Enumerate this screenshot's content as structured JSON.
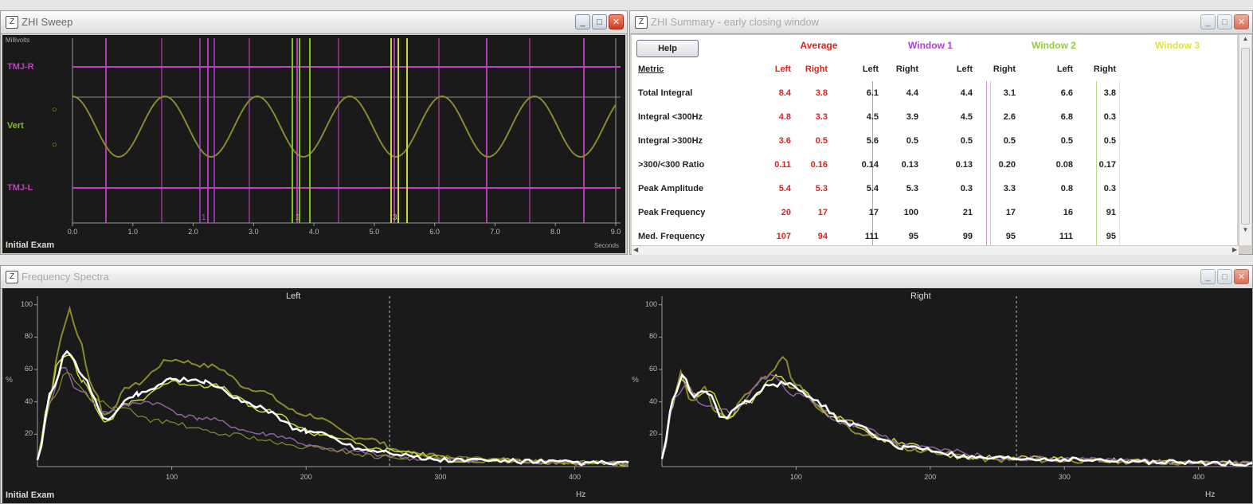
{
  "colors": {
    "magenta": "#c23fc2",
    "olive": "#8a8a2a",
    "green": "#80c020",
    "yellowgreen": "#c8d83a",
    "white": "#ffffff",
    "purple": "#9060a0",
    "red": "#e02020",
    "window1": "#b040d0",
    "window2": "#90d030",
    "window3": "#e0e040"
  },
  "sweep": {
    "title": "ZHI Sweep",
    "top_left_label": "Millivolts",
    "row_labels": [
      "TMJ-R",
      "Vert",
      "TMJ-L"
    ],
    "vert_circles": [
      "○",
      "○"
    ],
    "x_ticks": [
      "0.0",
      "1.0",
      "2.0",
      "3.0",
      "4.0",
      "5.0",
      "6.0",
      "7.0",
      "8.0",
      "9.0"
    ],
    "bottom_left": "Initial Exam",
    "bottom_right": "Seconds",
    "window_markers": [
      "1",
      "2",
      "3"
    ]
  },
  "summary": {
    "title": "ZHI Summary - early closing window",
    "help_label": "Help",
    "metric_header": "Metric",
    "groups": [
      "Average",
      "Window 1",
      "Window 2",
      "Window 3"
    ],
    "sub": [
      "Left",
      "Right"
    ],
    "rows": [
      {
        "label": "Total Integral",
        "values": [
          "8.4",
          "3.8",
          "6.1",
          "4.4",
          "4.4",
          "3.1",
          "6.6",
          "3.8"
        ]
      },
      {
        "label": "Integral <300Hz",
        "values": [
          "4.8",
          "3.3",
          "4.5",
          "3.9",
          "4.5",
          "2.6",
          "6.8",
          "0.3"
        ]
      },
      {
        "label": "Integral >300Hz",
        "values": [
          "3.6",
          "0.5",
          "5.6",
          "0.5",
          "0.5",
          "0.5",
          "0.5",
          "0.5"
        ]
      },
      {
        "label": ">300/<300 Ratio",
        "values": [
          "0.11",
          "0.16",
          "0.14",
          "0.13",
          "0.13",
          "0.20",
          "0.08",
          "0.17"
        ]
      },
      {
        "label": "Peak Amplitude",
        "values": [
          "5.4",
          "5.3",
          "5.4",
          "5.3",
          "0.3",
          "3.3",
          "0.8",
          "0.3"
        ]
      },
      {
        "label": "Peak Frequency",
        "values": [
          "20",
          "17",
          "17",
          "100",
          "21",
          "17",
          "16",
          "91"
        ]
      },
      {
        "label": "Med. Frequency",
        "values": [
          "107",
          "94",
          "111",
          "95",
          "99",
          "95",
          "111",
          "95"
        ]
      }
    ]
  },
  "spectra": {
    "title": "Frequency Spectra",
    "left_title": "Left",
    "right_title": "Right",
    "y_ticks": [
      "100",
      "80",
      "60",
      "40",
      "20"
    ],
    "y_label": "%",
    "left_x_ticks": [
      "100",
      "200",
      "300",
      "400"
    ],
    "right_x_ticks": [
      "100",
      "200",
      "300",
      "400"
    ],
    "x_unit": "Hz",
    "bottom_left": "Initial Exam"
  }
}
